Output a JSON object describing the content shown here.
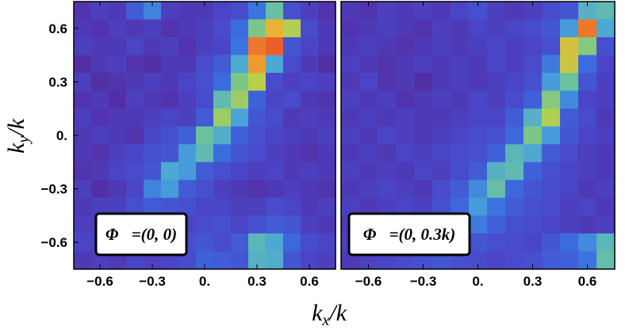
{
  "chart_data": [
    {
      "type": "heatmap",
      "annotation": "Φ⃗=(0, 0)",
      "x_ticks": [
        "−0.6",
        "−0.3",
        "0.",
        "0.3",
        "0.6"
      ],
      "x_tick_values": [
        -0.6,
        -0.3,
        0,
        0.3,
        0.6
      ],
      "y_ticks": [
        "0.6",
        "0.3",
        "0.",
        "−0.3",
        "−0.6"
      ],
      "y_tick_values": [
        0.6,
        0.3,
        0,
        -0.3,
        -0.6
      ],
      "xlim": [
        -0.75,
        0.75
      ],
      "ylim": [
        -0.75,
        0.75
      ],
      "xlabel": "k_x/k",
      "ylabel": "k_y/k",
      "bins": 15,
      "rows_top_to_bottom": [
        [
          0.08,
          0.12,
          0.1,
          0.22,
          0.34,
          0.12,
          0.1,
          0.1,
          0.14,
          0.16,
          0.3,
          0.55,
          0.18,
          0.12,
          0.08
        ],
        [
          0.1,
          0.08,
          0.12,
          0.1,
          0.12,
          0.08,
          0.1,
          0.12,
          0.16,
          0.28,
          0.6,
          0.84,
          0.7,
          0.16,
          0.1
        ],
        [
          0.12,
          0.1,
          0.1,
          0.14,
          0.1,
          0.12,
          0.08,
          0.12,
          0.14,
          0.3,
          0.92,
          0.95,
          0.2,
          0.14,
          0.1
        ],
        [
          0.06,
          0.1,
          0.12,
          0.08,
          0.06,
          0.1,
          0.1,
          0.16,
          0.22,
          0.45,
          0.88,
          0.44,
          0.16,
          0.1,
          0.06
        ],
        [
          0.12,
          0.06,
          0.08,
          0.1,
          0.12,
          0.1,
          0.14,
          0.18,
          0.28,
          0.6,
          0.72,
          0.16,
          0.12,
          0.14,
          0.12
        ],
        [
          0.08,
          0.1,
          0.06,
          0.12,
          0.1,
          0.08,
          0.12,
          0.16,
          0.52,
          0.66,
          0.24,
          0.14,
          0.16,
          0.1,
          0.08
        ],
        [
          0.12,
          0.08,
          0.1,
          0.1,
          0.12,
          0.14,
          0.12,
          0.22,
          0.66,
          0.42,
          0.2,
          0.16,
          0.1,
          0.12,
          0.1
        ],
        [
          0.1,
          0.12,
          0.1,
          0.08,
          0.14,
          0.18,
          0.24,
          0.56,
          0.46,
          0.24,
          0.18,
          0.14,
          0.12,
          0.1,
          0.12
        ],
        [
          0.1,
          0.08,
          0.12,
          0.14,
          0.18,
          0.2,
          0.4,
          0.52,
          0.28,
          0.2,
          0.16,
          0.12,
          0.1,
          0.08,
          0.1
        ],
        [
          0.08,
          0.1,
          0.14,
          0.16,
          0.2,
          0.44,
          0.4,
          0.22,
          0.18,
          0.14,
          0.12,
          0.14,
          0.1,
          0.12,
          0.1
        ],
        [
          0.12,
          0.06,
          0.1,
          0.14,
          0.34,
          0.4,
          0.22,
          0.18,
          0.12,
          0.1,
          0.08,
          0.1,
          0.12,
          0.1,
          0.08
        ],
        [
          0.1,
          0.12,
          0.12,
          0.18,
          0.22,
          0.2,
          0.18,
          0.14,
          0.14,
          0.12,
          0.12,
          0.16,
          0.14,
          0.1,
          0.12
        ],
        [
          0.12,
          0.1,
          0.14,
          0.16,
          0.18,
          0.16,
          0.14,
          0.16,
          0.18,
          0.14,
          0.18,
          0.22,
          0.2,
          0.12,
          0.1
        ],
        [
          0.14,
          0.12,
          0.18,
          0.16,
          0.14,
          0.12,
          0.18,
          0.2,
          0.16,
          0.22,
          0.5,
          0.44,
          0.26,
          0.16,
          0.14
        ],
        [
          0.1,
          0.12,
          0.1,
          0.14,
          0.12,
          0.14,
          0.16,
          0.24,
          0.22,
          0.2,
          0.48,
          0.46,
          0.2,
          0.14,
          0.12
        ]
      ]
    },
    {
      "type": "heatmap",
      "annotation": "Φ⃗=(0, 0.3k)",
      "x_ticks": [
        "−0.6",
        "−0.3",
        "0.",
        "0.3",
        "0.6"
      ],
      "x_tick_values": [
        -0.6,
        -0.3,
        0,
        0.3,
        0.6
      ],
      "y_ticks": [],
      "y_tick_values": [],
      "xlim": [
        -0.75,
        0.75
      ],
      "ylim": [
        -0.75,
        0.75
      ],
      "xlabel": "k_x/k",
      "ylabel": "",
      "bins": 15,
      "rows_top_to_bottom": [
        [
          0.1,
          0.08,
          0.12,
          0.1,
          0.12,
          0.1,
          0.14,
          0.18,
          0.12,
          0.1,
          0.12,
          0.16,
          0.2,
          0.48,
          0.52
        ],
        [
          0.08,
          0.1,
          0.12,
          0.1,
          0.08,
          0.12,
          0.1,
          0.14,
          0.12,
          0.14,
          0.16,
          0.2,
          0.4,
          0.92,
          0.44
        ],
        [
          0.1,
          0.12,
          0.1,
          0.08,
          0.1,
          0.12,
          0.1,
          0.12,
          0.14,
          0.12,
          0.14,
          0.18,
          0.78,
          0.62,
          0.18
        ],
        [
          0.12,
          0.1,
          0.08,
          0.1,
          0.12,
          0.1,
          0.12,
          0.1,
          0.14,
          0.12,
          0.16,
          0.32,
          0.76,
          0.28,
          0.14
        ],
        [
          0.1,
          0.14,
          0.08,
          0.1,
          0.06,
          0.1,
          0.12,
          0.1,
          0.12,
          0.14,
          0.18,
          0.4,
          0.56,
          0.2,
          0.12
        ],
        [
          0.12,
          0.1,
          0.12,
          0.08,
          0.1,
          0.12,
          0.1,
          0.14,
          0.12,
          0.16,
          0.24,
          0.62,
          0.36,
          0.14,
          0.12
        ],
        [
          0.1,
          0.12,
          0.1,
          0.12,
          0.1,
          0.1,
          0.12,
          0.14,
          0.14,
          0.22,
          0.48,
          0.7,
          0.22,
          0.16,
          0.1
        ],
        [
          0.12,
          0.1,
          0.14,
          0.12,
          0.1,
          0.12,
          0.14,
          0.16,
          0.18,
          0.26,
          0.6,
          0.4,
          0.2,
          0.14,
          0.12
        ],
        [
          0.1,
          0.12,
          0.1,
          0.14,
          0.12,
          0.14,
          0.16,
          0.18,
          0.24,
          0.5,
          0.44,
          0.22,
          0.16,
          0.12,
          0.1
        ],
        [
          0.12,
          0.1,
          0.12,
          0.1,
          0.14,
          0.12,
          0.16,
          0.22,
          0.48,
          0.52,
          0.24,
          0.18,
          0.14,
          0.12,
          0.1
        ],
        [
          0.1,
          0.12,
          0.14,
          0.12,
          0.1,
          0.16,
          0.22,
          0.36,
          0.54,
          0.26,
          0.2,
          0.16,
          0.14,
          0.1,
          0.12
        ],
        [
          0.12,
          0.1,
          0.12,
          0.14,
          0.12,
          0.18,
          0.26,
          0.4,
          0.3,
          0.22,
          0.18,
          0.16,
          0.12,
          0.14,
          0.1
        ],
        [
          0.1,
          0.12,
          0.14,
          0.12,
          0.16,
          0.22,
          0.36,
          0.32,
          0.24,
          0.18,
          0.16,
          0.14,
          0.12,
          0.1,
          0.12
        ],
        [
          0.12,
          0.1,
          0.12,
          0.16,
          0.2,
          0.26,
          0.24,
          0.2,
          0.18,
          0.16,
          0.14,
          0.2,
          0.28,
          0.36,
          0.5
        ],
        [
          0.1,
          0.12,
          0.14,
          0.16,
          0.18,
          0.2,
          0.18,
          0.16,
          0.14,
          0.16,
          0.18,
          0.22,
          0.24,
          0.3,
          0.54
        ]
      ]
    }
  ],
  "colormap": [
    "#5a1e8c",
    "#4a46c8",
    "#3a6ee0",
    "#4aa6d8",
    "#6ec49a",
    "#b8d04a",
    "#f0b030",
    "#e83424"
  ]
}
